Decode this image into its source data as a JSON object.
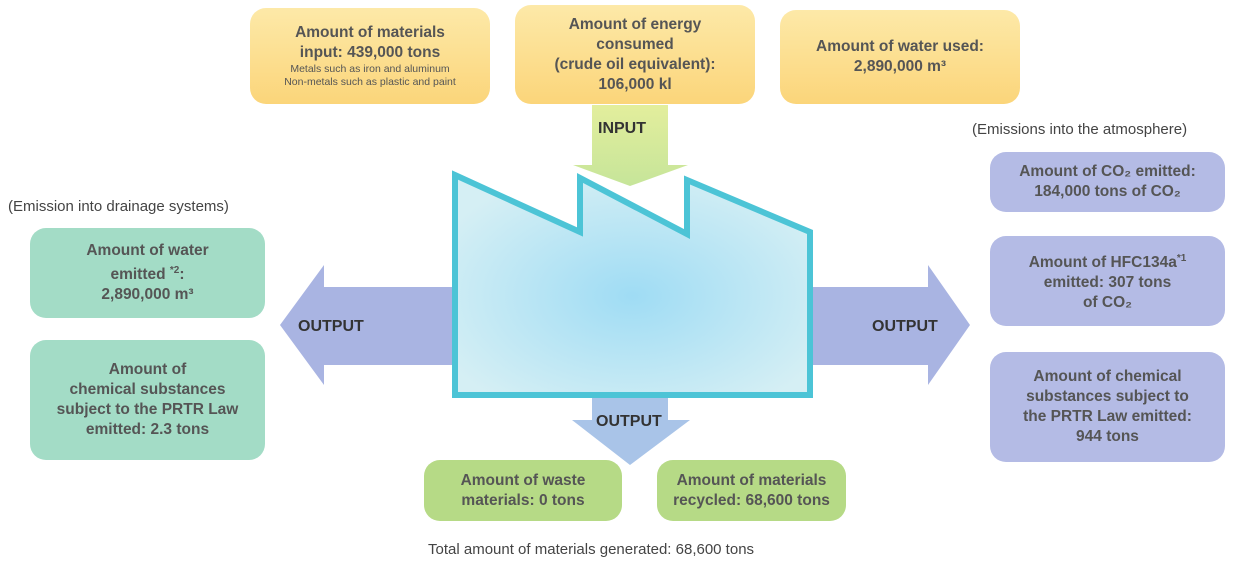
{
  "input_label": "INPUT",
  "output_labels": {
    "left": "OUTPUT",
    "right": "OUTPUT",
    "bottom": "OUTPUT"
  },
  "inputs": [
    {
      "lines": [
        "Amount of materials",
        "input: 439,000 tons"
      ],
      "notes": [
        "Metals such as iron and aluminum",
        "Non-metals such as plastic and paint"
      ]
    },
    {
      "lines": [
        "Amount of energy",
        "consumed",
        "(crude oil equivalent):",
        "106,000 kl"
      ]
    },
    {
      "lines": [
        "Amount of water used:",
        "2,890,000 m³"
      ]
    }
  ],
  "atmosphere": {
    "caption": "(Emissions into the atmosphere)",
    "boxes": [
      {
        "lines": [
          "Amount of CO₂ emitted:",
          "184,000 tons of CO₂"
        ]
      },
      {
        "lines": [
          [
            {
              "text": "Amount of HFC134a"
            },
            {
              "text": "*1",
              "sup": true
            }
          ],
          "emitted: 307 tons",
          "of CO₂"
        ]
      },
      {
        "lines": [
          "Amount of chemical",
          "substances subject to",
          "the PRTR Law emitted:",
          "944 tons"
        ]
      }
    ]
  },
  "drainage": {
    "caption": "(Emission into drainage systems)",
    "boxes": [
      {
        "lines": [
          "Amount of water",
          [
            {
              "text": "emitted "
            },
            {
              "text": "*2",
              "sup": true
            },
            {
              "text": ":"
            }
          ],
          "2,890,000 m³"
        ]
      },
      {
        "lines": [
          "Amount of",
          "chemical substances",
          "subject to the PRTR Law",
          "emitted: 2.3 tons"
        ]
      }
    ]
  },
  "waste": {
    "boxes": [
      {
        "lines": [
          "Amount of waste",
          "materials: 0 tons"
        ]
      },
      {
        "lines": [
          "Amount of materials",
          "recycled: 68,600 tons"
        ]
      }
    ],
    "total": "Total amount of materials generated: 68,600 tons"
  }
}
